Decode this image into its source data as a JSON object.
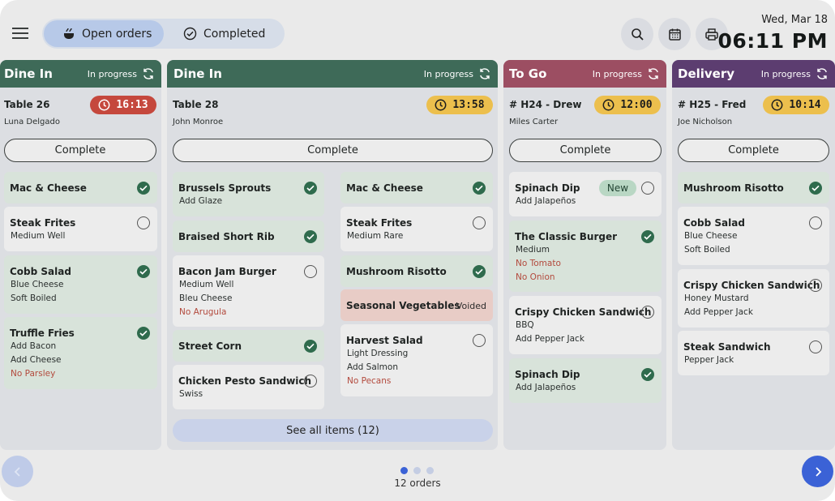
{
  "header": {
    "tabs": {
      "open": "Open orders",
      "completed": "Completed"
    },
    "date": "Wed, Mar 18",
    "time": "06:11 PM"
  },
  "labels": {
    "complete": "Complete",
    "in_progress": "In progress",
    "new_badge": "New",
    "voided": "Voided",
    "see_all": "See all items (12)"
  },
  "orders": [
    {
      "type": "Dine In",
      "status": "In progress",
      "title": "Table 26",
      "customer": "Luna Delgado",
      "timer": "16:13",
      "items": [
        {
          "name": "Mac & Cheese",
          "mods": []
        },
        {
          "name": "Steak Frites",
          "mods": [
            "Medium Well"
          ]
        },
        {
          "name": "Cobb Salad",
          "mods": [
            "Blue Cheese",
            "Soft Boiled"
          ]
        },
        {
          "name": "Truffle Fries",
          "mods": [
            "Add Bacon",
            "Add Cheese",
            "No Parsley"
          ]
        }
      ]
    },
    {
      "type": "Dine In",
      "status": "In progress",
      "title": "Table 28",
      "customer": "John Monroe",
      "timer": "13:58",
      "items": [
        {
          "name": "Brussels Sprouts",
          "mods": [
            "Add Glaze"
          ]
        },
        {
          "name": "Braised Short Rib",
          "mods": []
        },
        {
          "name": "Bacon Jam Burger",
          "mods": [
            "Medium Well",
            "Bleu Cheese",
            "No Arugula"
          ]
        },
        {
          "name": "Street Corn",
          "mods": []
        },
        {
          "name": "Chicken Pesto Sandwich",
          "mods": [
            "Swiss"
          ]
        },
        {
          "name": "Mac & Cheese",
          "mods": []
        },
        {
          "name": "Steak Frites",
          "mods": [
            "Medium Rare"
          ]
        },
        {
          "name": "Mushroom Risotto",
          "mods": []
        },
        {
          "name": "Seasonal Vegetables",
          "mods": []
        },
        {
          "name": "Harvest Salad",
          "mods": [
            "Light Dressing",
            "Add Salmon",
            "No Pecans"
          ]
        }
      ]
    },
    {
      "type": "To Go",
      "status": "In progress",
      "title": "# H24 - Drew",
      "customer": "Miles Carter",
      "timer": "12:00",
      "items": [
        {
          "name": "Spinach Dip",
          "mods": [
            "Add Jalapeños"
          ]
        },
        {
          "name": "The Classic Burger",
          "mods": [
            "Medium",
            "No Tomato",
            "No Onion"
          ]
        },
        {
          "name": "Crispy Chicken Sandwich",
          "mods": [
            "BBQ",
            "Add Pepper Jack"
          ]
        },
        {
          "name": "Spinach Dip",
          "mods": [
            "Add Jalapeños"
          ]
        }
      ]
    },
    {
      "type": "Delivery",
      "status": "In progress",
      "title": "# H25 - Fred",
      "customer": "Joe Nicholson",
      "timer": "10:14",
      "items": [
        {
          "name": "Mushroom Risotto",
          "mods": []
        },
        {
          "name": "Cobb Salad",
          "mods": [
            "Blue Cheese",
            "Soft Boiled"
          ]
        },
        {
          "name": "Crispy Chicken Sandwich",
          "mods": [
            "Honey Mustard",
            "Add Pepper Jack"
          ]
        },
        {
          "name": "Steak Sandwich",
          "mods": [
            "Pepper Jack"
          ]
        }
      ]
    }
  ],
  "footer": {
    "count": "12 orders",
    "page": 1,
    "pages": 3
  },
  "colors": {
    "dine_in": "#3e6a58",
    "to_go": "#9c4e62",
    "delivery": "#5c3d70",
    "timer_late": "#c5483d",
    "timer_warn": "#ecbf4d",
    "done_item": "#d8e3da",
    "voided_item": "#e8ccc6",
    "accent": "#3b62d6"
  },
  "icons": [
    "menu-icon",
    "cooking-pot-icon",
    "check-circle-icon",
    "search-icon",
    "calendar-icon",
    "printer-icon",
    "refresh-icon",
    "clock-icon",
    "checkmark-icon",
    "chevron-left-icon",
    "chevron-right-icon"
  ]
}
